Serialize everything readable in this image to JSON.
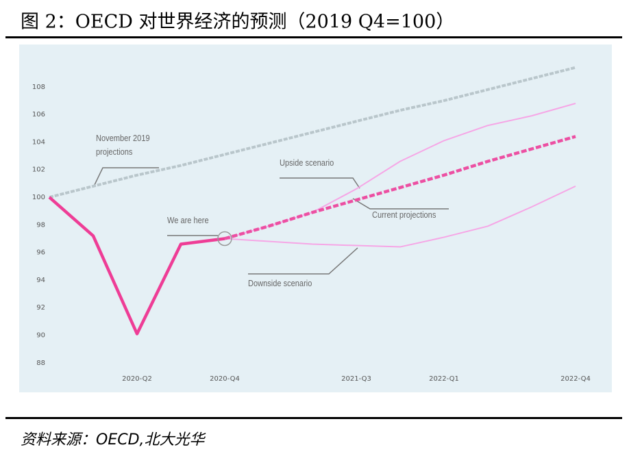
{
  "chart_data": {
    "type": "line",
    "title": "图 2：OECD 对世界经济的预测（2019 Q4=100）",
    "source": "资料来源：OECD,北大光华",
    "annotation": "We are here",
    "categories": [
      null,
      null,
      "2020-Q2",
      null,
      "2020-Q4",
      null,
      null,
      "2021-Q3",
      null,
      "2022-Q1",
      null,
      null,
      "2022-Q4"
    ],
    "ylim": [
      87.5,
      110
    ],
    "yticks": [
      88,
      90,
      92,
      94,
      96,
      98,
      100,
      102,
      104,
      106,
      108
    ],
    "series": [
      {
        "name": "November 2019 projections",
        "color": "#b9c6cb",
        "values": [
          100,
          100.8,
          101.6,
          102.3,
          103.1,
          103.9,
          104.7,
          105.5,
          106.3,
          107.0,
          107.8,
          108.6,
          109.4
        ]
      },
      {
        "color": "#ee3d96",
        "values": [
          100,
          97.2,
          90.1,
          96.6,
          97.0,
          null,
          null,
          null,
          null,
          null,
          null,
          null,
          null
        ]
      },
      {
        "name": "Upside scenario",
        "color": "#f6a6e6",
        "values": [
          null,
          null,
          null,
          null,
          97.0,
          97.9,
          98.9,
          100.6,
          102.6,
          104.1,
          105.2,
          105.9,
          106.8
        ]
      },
      {
        "name": "Current projections",
        "color": "#ec4fa2",
        "values": [
          null,
          null,
          null,
          null,
          97.0,
          97.9,
          98.9,
          99.8,
          100.7,
          101.6,
          102.6,
          103.5,
          104.4
        ]
      },
      {
        "name": "Downside scenario",
        "color": "#f6a6e6",
        "values": [
          null,
          null,
          null,
          null,
          97.0,
          96.8,
          96.6,
          96.5,
          96.4,
          97.1,
          97.9,
          99.3,
          100.8
        ]
      }
    ]
  }
}
